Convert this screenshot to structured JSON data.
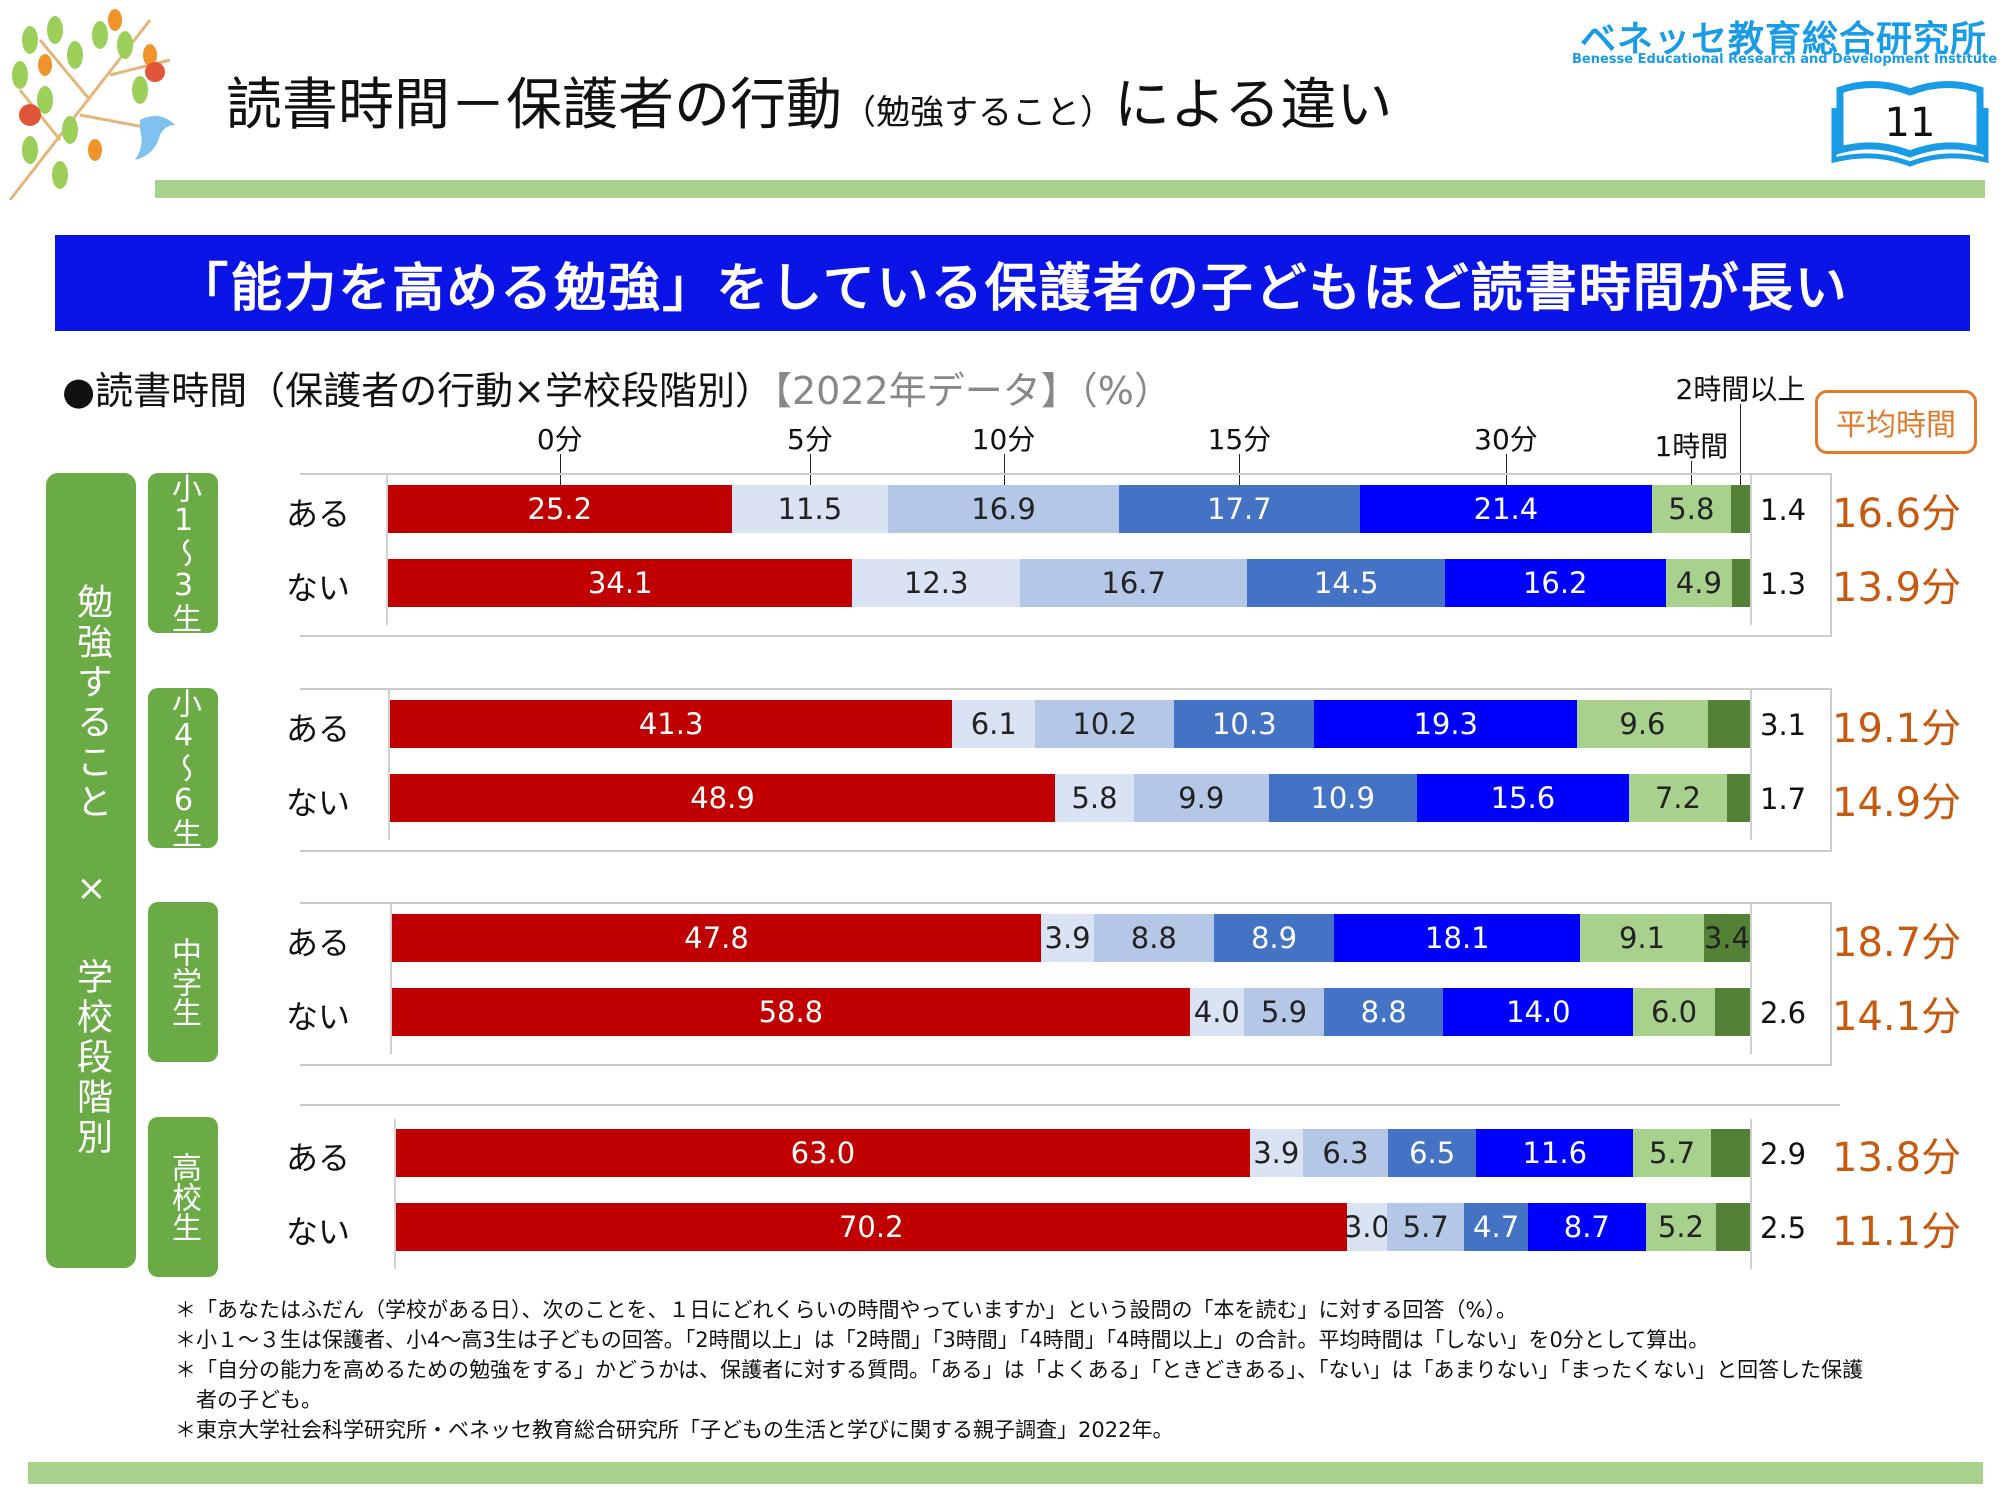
{
  "header": {
    "title_main": "読書時間－保護者の行動",
    "title_paren": "（勉強すること）",
    "title_tail": "による違い",
    "logo_jp": "ベネッセ教育総合研究所",
    "logo_en": "Benesse  Educational Research and Development Institute",
    "page_number": "11"
  },
  "banner": "「能力を高める勉強」をしている保護者の子どもほど読書時間が長い",
  "subtitle": {
    "main": "●読書時間（保護者の行動×学校段階別）",
    "gray": "【2022年データ】（%）"
  },
  "side_label": "勉強すること × 学校段階別",
  "avg_header": "平均時間",
  "chart_data": {
    "type": "bar",
    "orientation": "horizontal-stacked-100",
    "title": "読書時間（保護者の行動×学校段階別）【2022年データ】（%）",
    "legend": [
      "0分",
      "5分",
      "10分",
      "15分",
      "30分",
      "1時間",
      "2時間以上"
    ],
    "colors": [
      "#c00000",
      "#dae3f3",
      "#b4c7e7",
      "#4472c4",
      "#0000ff",
      "#a9d18e",
      "#538135"
    ],
    "label_colors": [
      "#ffffff",
      "#222222",
      "#222222",
      "#ffffff",
      "#ffffff",
      "#222222",
      "#222222"
    ],
    "groups": [
      {
        "name": "小1～3生",
        "rows": [
          {
            "label": "ある",
            "values": [
              25.2,
              11.5,
              16.9,
              17.7,
              21.4,
              5.8,
              1.4
            ],
            "avg": "16.6分"
          },
          {
            "label": "ない",
            "values": [
              34.1,
              12.3,
              16.7,
              14.5,
              16.2,
              4.9,
              1.3
            ],
            "avg": "13.9分"
          }
        ]
      },
      {
        "name": "小4～6生",
        "rows": [
          {
            "label": "ある",
            "values": [
              41.3,
              6.1,
              10.2,
              10.3,
              19.3,
              9.6,
              3.1
            ],
            "avg": "19.1分"
          },
          {
            "label": "ない",
            "values": [
              48.9,
              5.8,
              9.9,
              10.9,
              15.6,
              7.2,
              1.7
            ],
            "avg": "14.9分"
          }
        ]
      },
      {
        "name": "中学生",
        "rows": [
          {
            "label": "ある",
            "values": [
              47.8,
              3.9,
              8.8,
              8.9,
              18.1,
              9.1,
              3.4
            ],
            "avg": "18.7分"
          },
          {
            "label": "ない",
            "values": [
              58.8,
              4.0,
              5.9,
              8.8,
              14.0,
              6.0,
              2.6
            ],
            "avg": "14.1分"
          }
        ]
      },
      {
        "name": "高校生",
        "rows": [
          {
            "label": "ある",
            "values": [
              63.0,
              3.9,
              6.3,
              6.5,
              11.6,
              5.7,
              2.9
            ],
            "avg": "13.8分"
          },
          {
            "label": "ない",
            "values": [
              70.2,
              3.0,
              5.7,
              4.7,
              8.7,
              5.2,
              2.5
            ],
            "avg": "11.1分"
          }
        ]
      }
    ]
  },
  "notes": [
    "＊「あなたはふだん（学校がある日）、次のことを、１日にどれくらいの時間やっていますか」という設問の「本を読む」に対する回答（%）。",
    "＊小１～３生は保護者、小4～高3生は子どもの回答。「2時間以上」は「2時間」「3時間」「4時間」「4時間以上」の合計。平均時間は「しない」を0分として算出。",
    "＊「自分の能力を高めるための勉強をする」かどうかは、保護者に対する質問。「ある」は「よくある」「ときどきある」、「ない」は「あまりない」「まったくない」と回答した保護",
    "　者の子ども。",
    "＊東京大学社会科学研究所・ベネッセ教育総合研究所「子どもの生活と学びに関する親子調査」2022年。"
  ]
}
